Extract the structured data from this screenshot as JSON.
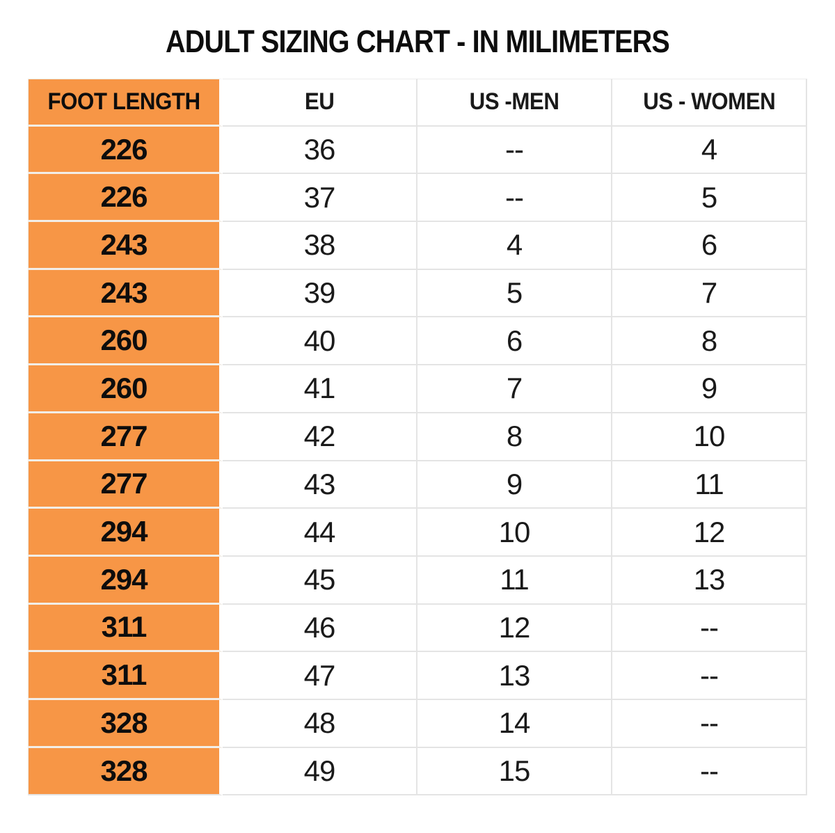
{
  "title": "ADULT SIZING CHART - IN MILIMETERS",
  "colors": {
    "accent_orange": "#F79646",
    "grid_line": "#E4E4E4",
    "orange_row_gap": "#F2EEE8",
    "text": "#111111",
    "background": "#FFFFFF"
  },
  "chart_data": {
    "type": "table",
    "title": "ADULT SIZING CHART - IN MILIMETERS",
    "columns": [
      "FOOT LENGTH",
      "EU",
      "US -MEN",
      "US - WOMEN"
    ],
    "rows": [
      [
        "226",
        "36",
        "--",
        "4"
      ],
      [
        "226",
        "37",
        "--",
        "5"
      ],
      [
        "243",
        "38",
        "4",
        "6"
      ],
      [
        "243",
        "39",
        "5",
        "7"
      ],
      [
        "260",
        "40",
        "6",
        "8"
      ],
      [
        "260",
        "41",
        "7",
        "9"
      ],
      [
        "277",
        "42",
        "8",
        "10"
      ],
      [
        "277",
        "43",
        "9",
        "11"
      ],
      [
        "294",
        "44",
        "10",
        "12"
      ],
      [
        "294",
        "45",
        "11",
        "13"
      ],
      [
        "311",
        "46",
        "12",
        "--"
      ],
      [
        "311",
        "47",
        "13",
        "--"
      ],
      [
        "328",
        "48",
        "14",
        "--"
      ],
      [
        "328",
        "49",
        "15",
        "--"
      ]
    ],
    "layout_hints": {
      "first_column_highlight": "orange",
      "header_bold": true,
      "grid": true
    }
  }
}
